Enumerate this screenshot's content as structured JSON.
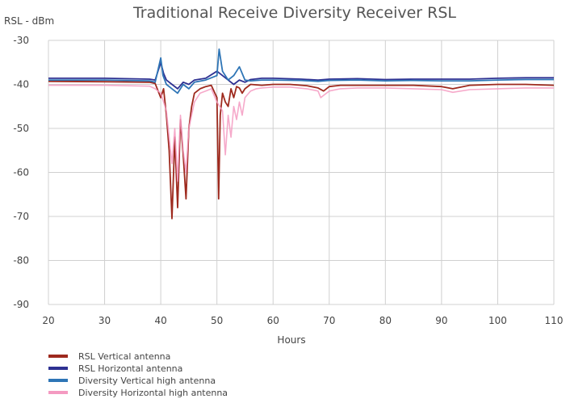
{
  "chart_data": {
    "type": "line",
    "title": "Traditional Receive Diversity Receiver RSL",
    "ylabel": "RSL - dBm",
    "xlabel": "Hours",
    "xlim": [
      20,
      110
    ],
    "ylim": [
      -90,
      -30
    ],
    "x_ticks": [
      20,
      30,
      40,
      50,
      60,
      70,
      80,
      90,
      100,
      110
    ],
    "y_ticks": [
      -30,
      -40,
      -50,
      -60,
      -70,
      -80,
      -90
    ],
    "grid": true,
    "legend_position": "bottom-left",
    "series": [
      {
        "name": "RSL Vertical antenna",
        "color": "#9e2a1e",
        "x": [
          20,
          30,
          38,
          39,
          40,
          40.5,
          41,
          41.5,
          42,
          42.5,
          43,
          43.5,
          44,
          44.5,
          45,
          45.5,
          46,
          47,
          48,
          49,
          50,
          50.3,
          50.6,
          51,
          51.5,
          52,
          52.5,
          53,
          53.5,
          54,
          54.5,
          55,
          56,
          58,
          60,
          63,
          66,
          68,
          69,
          70,
          72,
          75,
          80,
          85,
          90,
          92,
          95,
          100,
          105,
          110
        ],
        "y": [
          -39.3,
          -39.4,
          -39.5,
          -39.8,
          -43,
          -41,
          -47,
          -55,
          -70.5,
          -52,
          -68,
          -48,
          -56,
          -66,
          -50,
          -45,
          -42,
          -41,
          -40.5,
          -40.2,
          -43,
          -66,
          -47,
          -42,
          -44,
          -45,
          -41,
          -43,
          -40.5,
          -40.8,
          -42,
          -41,
          -40,
          -40.2,
          -40,
          -40,
          -40.3,
          -40.8,
          -41.5,
          -40.5,
          -40.2,
          -40.2,
          -40.2,
          -40.2,
          -40.5,
          -41,
          -40.2,
          -40,
          -40,
          -40.2
        ]
      },
      {
        "name": "RSL Horizontal antenna",
        "color": "#2e3192",
        "x": [
          20,
          30,
          38,
          39,
          40,
          40.5,
          41,
          42,
          43,
          44,
          45,
          46,
          48,
          50,
          51,
          52,
          53,
          54,
          55,
          56,
          58,
          60,
          65,
          68,
          70,
          75,
          80,
          85,
          90,
          95,
          100,
          105,
          110
        ],
        "y": [
          -38.6,
          -38.6,
          -38.8,
          -39,
          -35,
          -37.5,
          -39,
          -40,
          -41,
          -39.5,
          -40,
          -39,
          -38.6,
          -37,
          -38,
          -39,
          -40,
          -39,
          -39.5,
          -38.9,
          -38.6,
          -38.6,
          -38.8,
          -39,
          -38.8,
          -38.7,
          -38.9,
          -38.8,
          -38.8,
          -38.8,
          -38.6,
          -38.5,
          -38.5
        ]
      },
      {
        "name": "Diversity Vertical high antenna",
        "color": "#2e75b6",
        "x": [
          20,
          30,
          38,
          39,
          40,
          40.4,
          41,
          42,
          43,
          44,
          45,
          46,
          48,
          50,
          50.4,
          51,
          52,
          53,
          54,
          55,
          56,
          58,
          60,
          65,
          68,
          70,
          75,
          80,
          85,
          90,
          95,
          100,
          105,
          110
        ],
        "y": [
          -39,
          -39,
          -39.2,
          -39.5,
          -34,
          -38,
          -40,
          -41,
          -42,
          -40,
          -41,
          -39.5,
          -39,
          -38,
          -32,
          -37,
          -39,
          -38,
          -36,
          -39,
          -39.2,
          -39,
          -39,
          -39.1,
          -39.3,
          -39.1,
          -39,
          -39.2,
          -39.1,
          -39.2,
          -39.2,
          -39,
          -38.9,
          -38.9
        ]
      },
      {
        "name": "Diversity Horizontal high antenna",
        "color": "#f49ac1",
        "x": [
          20,
          30,
          38,
          39,
          40,
          40.5,
          41,
          41.5,
          42,
          42.5,
          43,
          43.5,
          44,
          44.5,
          45,
          46,
          47,
          48,
          49,
          50,
          51,
          51.5,
          52,
          52.5,
          53,
          53.5,
          54,
          54.5,
          55,
          56,
          57,
          58,
          60,
          63,
          66,
          68,
          68.5,
          69,
          70,
          72,
          75,
          80,
          85,
          90,
          92,
          95,
          100,
          105,
          110
        ],
        "y": [
          -40.2,
          -40.2,
          -40.4,
          -41,
          -42,
          -44,
          -46,
          -52,
          -58,
          -50,
          -62,
          -47,
          -55,
          -60,
          -50,
          -44,
          -42,
          -41.5,
          -41,
          -44,
          -46,
          -56,
          -47,
          -52,
          -45,
          -48,
          -44,
          -47,
          -43,
          -41.5,
          -41,
          -40.8,
          -40.6,
          -40.6,
          -41,
          -41.5,
          -43,
          -42.5,
          -41.5,
          -41,
          -40.8,
          -40.8,
          -41,
          -41.2,
          -41.8,
          -41.2,
          -41,
          -40.8,
          -40.8
        ]
      }
    ]
  }
}
